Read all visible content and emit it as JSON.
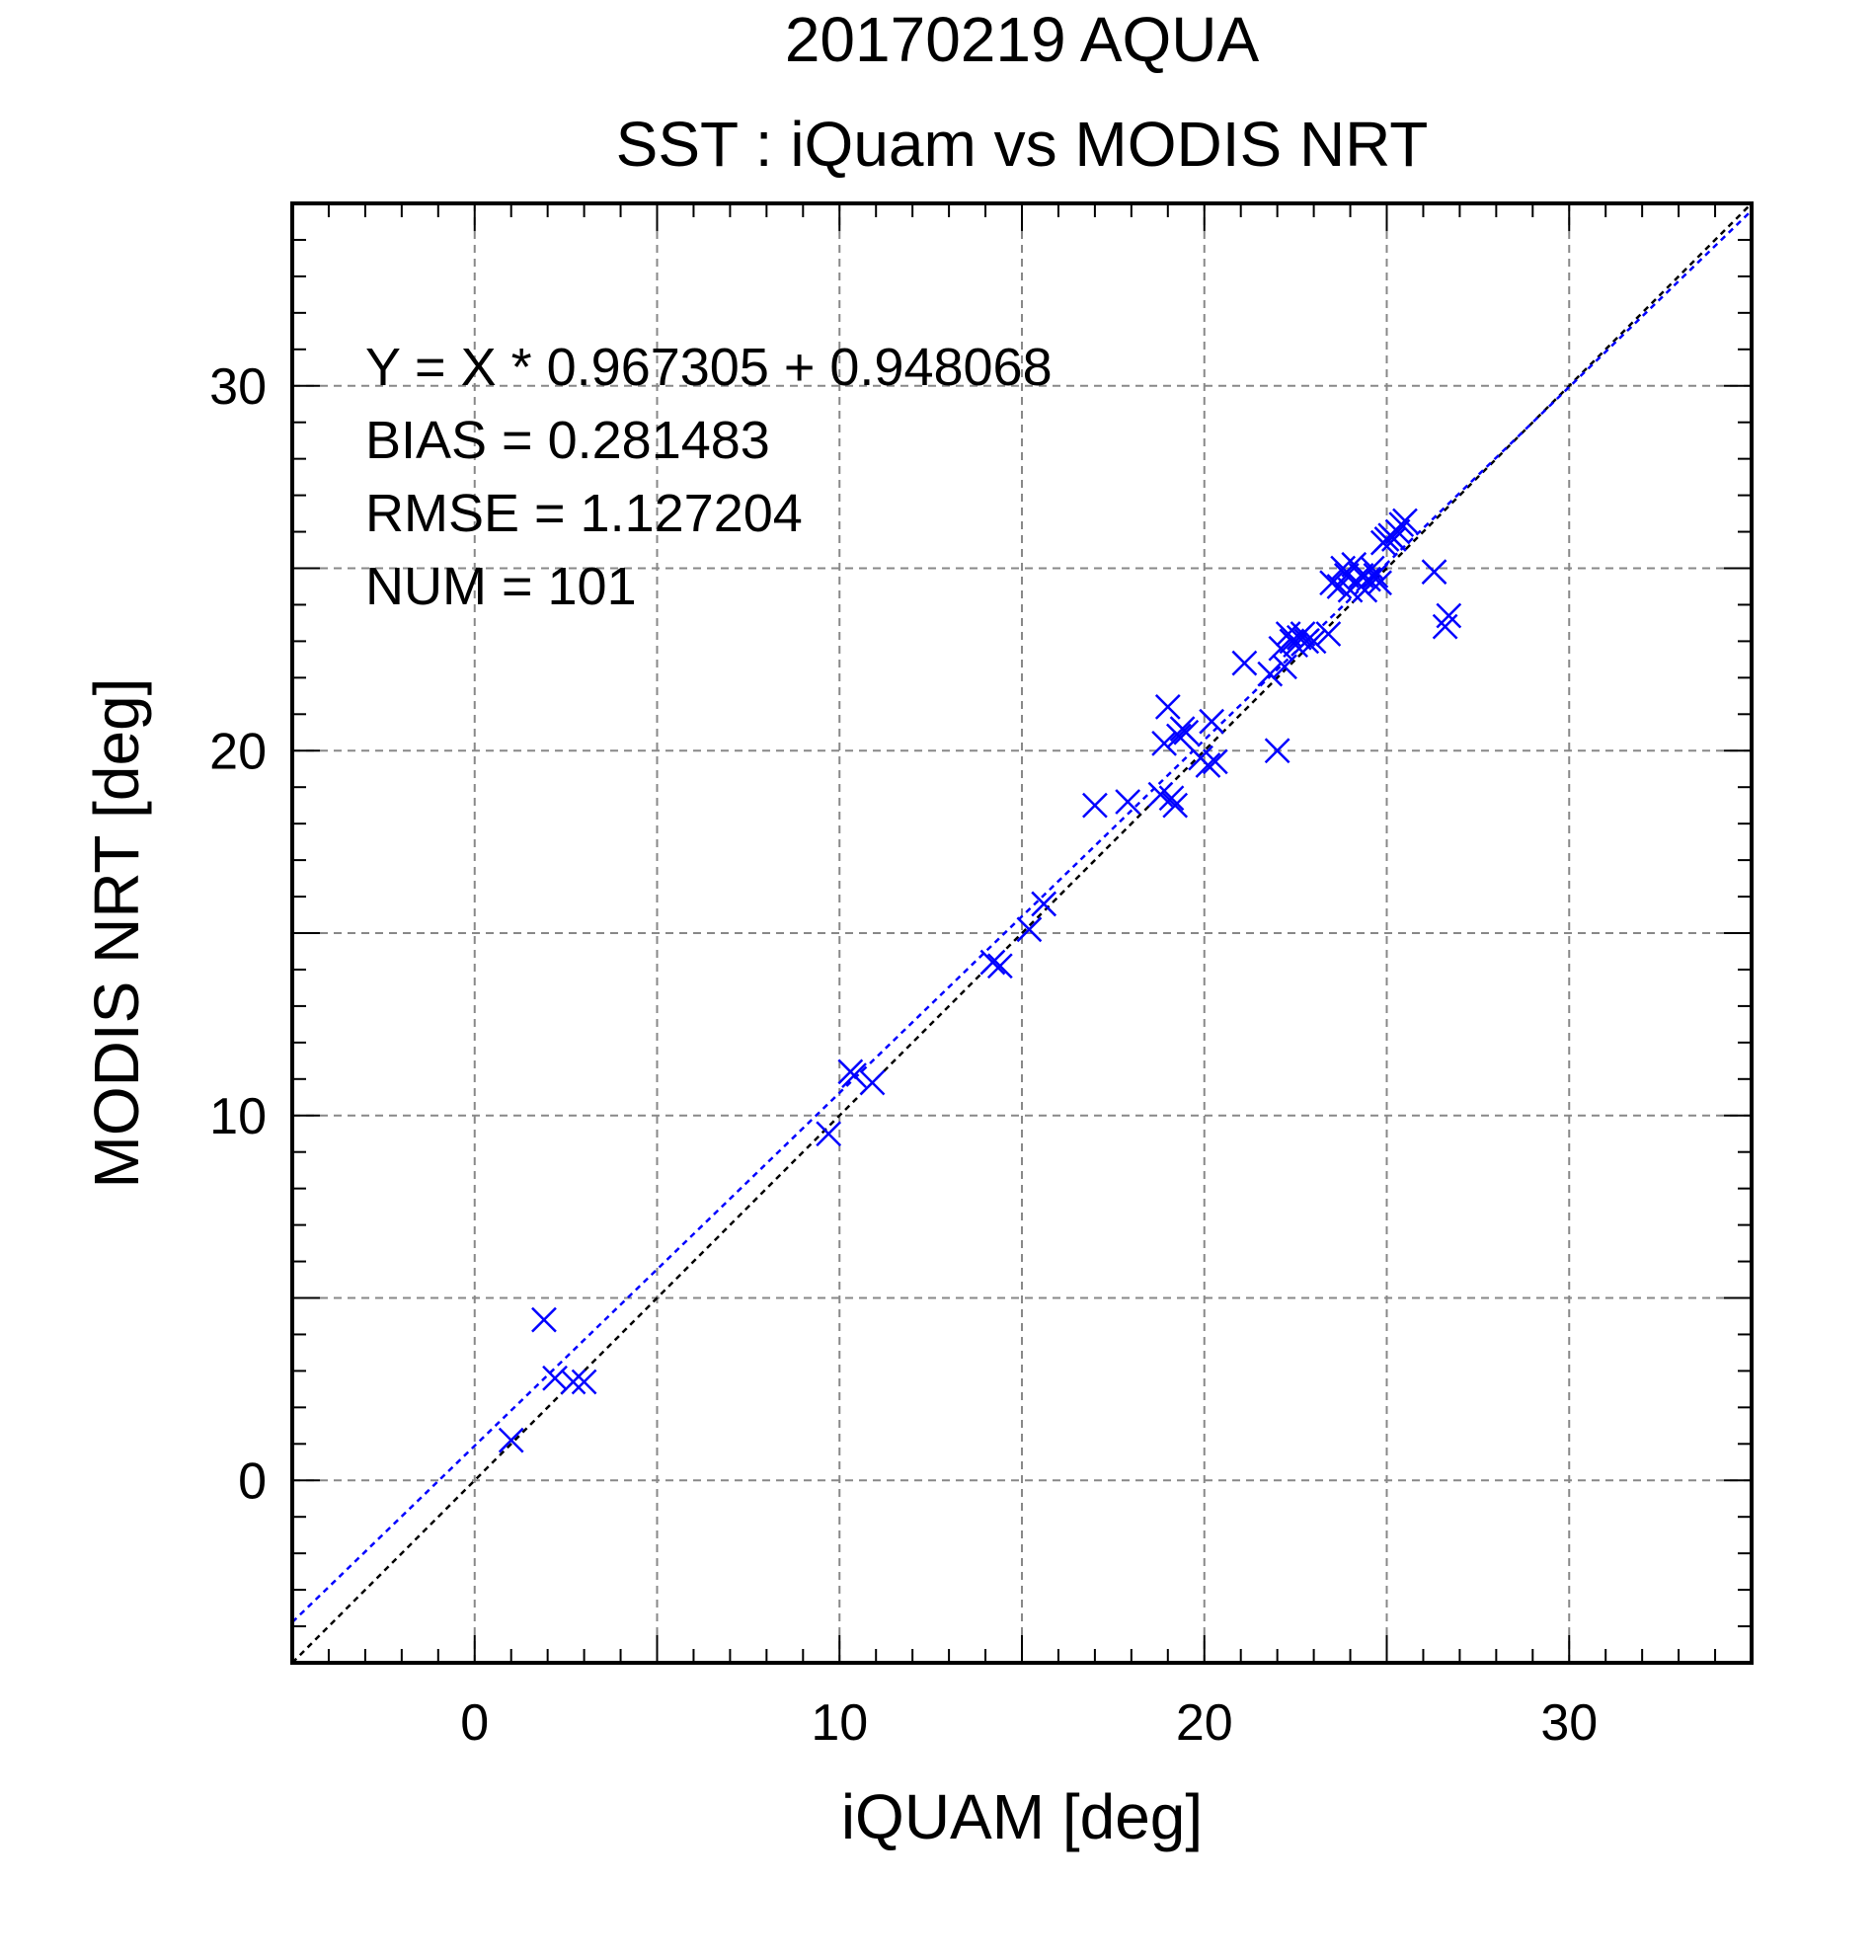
{
  "chart_data": {
    "type": "scatter",
    "title": "20170219 AQUA",
    "subtitle": "SST : iQuam vs MODIS NRT",
    "xlabel": "iQUAM [deg]",
    "ylabel": "MODIS NRT [deg]",
    "xlim": [
      -5,
      35
    ],
    "ylim": [
      -5,
      35
    ],
    "xticks": [
      0,
      10,
      20,
      30
    ],
    "yticks": [
      0,
      10,
      20,
      30
    ],
    "xtick_labels": [
      "0",
      "10",
      "20",
      "30"
    ],
    "ytick_labels": [
      "0",
      "10",
      "20",
      "30"
    ],
    "grid": true,
    "stats": {
      "equation": "Y = X * 0.967305 + 0.948068",
      "bias": "BIAS = 0.281483",
      "rmse": "RMSE = 1.127204",
      "num": "NUM = 101"
    },
    "regression": {
      "slope": 0.967305,
      "intercept": 0.948068,
      "color": "#0000ff"
    },
    "identity_line": {
      "color": "#000000"
    },
    "marker_color": "#0000ff",
    "points": {
      "x": [
        1.0,
        1.9,
        2.2,
        2.7,
        3.0,
        9.7,
        10.3,
        10.4,
        10.9,
        14.2,
        14.4,
        15.2,
        15.6,
        17.0,
        17.9,
        18.8,
        18.9,
        19.0,
        19.1,
        19.2,
        19.3,
        19.4,
        19.5,
        19.9,
        20.1,
        20.2,
        20.3,
        21.1,
        21.8,
        22.0,
        22.1,
        22.2,
        22.3,
        22.4,
        22.5,
        22.6,
        22.7,
        22.8,
        23.0,
        23.4,
        23.5,
        23.7,
        23.8,
        23.9,
        24.0,
        24.1,
        24.2,
        24.3,
        24.4,
        24.5,
        24.6,
        24.7,
        24.8,
        24.9,
        25.0,
        25.1,
        25.2,
        25.3,
        25.4,
        25.5,
        26.3,
        26.6,
        26.7
      ],
      "y": [
        1.1,
        4.4,
        2.8,
        2.7,
        2.7,
        9.5,
        11.2,
        11.1,
        10.9,
        14.2,
        14.1,
        15.1,
        15.8,
        18.5,
        18.6,
        18.8,
        20.2,
        21.2,
        18.7,
        18.5,
        20.4,
        20.6,
        20.5,
        19.8,
        19.6,
        20.8,
        19.7,
        22.4,
        22.1,
        20.0,
        22.8,
        22.3,
        23.2,
        23.0,
        22.9,
        23.1,
        23.2,
        23.0,
        23.0,
        23.2,
        24.6,
        24.5,
        25.0,
        24.8,
        24.4,
        25.1,
        24.6,
        24.8,
        24.4,
        24.7,
        25.0,
        24.8,
        24.6,
        25.7,
        25.8,
        25.9,
        25.8,
        26.0,
        26.2,
        26.3,
        24.9,
        23.4,
        23.7
      ]
    }
  }
}
